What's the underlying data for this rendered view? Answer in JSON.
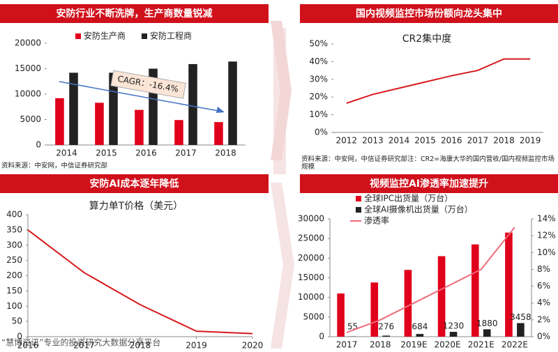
{
  "chart_data": [
    {
      "type": "bar",
      "title": "安防行业不断洗牌，生产商数量锐减",
      "categories": [
        "2014",
        "2015",
        "2016",
        "2017",
        "2018"
      ],
      "series": [
        {
          "name": "安防生产商",
          "color": "#e0001b",
          "values": [
            9200,
            8300,
            6900,
            4900,
            4500
          ]
        },
        {
          "name": "安防工程商",
          "color": "#222222",
          "values": [
            14200,
            14200,
            15000,
            15900,
            16400
          ]
        }
      ],
      "ylim": [
        0,
        20000
      ],
      "yticks": [
        0,
        5000,
        10000,
        15000,
        20000
      ],
      "annotation": "CAGR：-16.4%",
      "note": "资料来源：中安网，中信证券研究部",
      "legend": "top"
    },
    {
      "type": "line",
      "title": "国内视频监控市场份额向龙头集中",
      "subtitle": "CR2集中度",
      "categories": [
        "2012",
        "2013",
        "2014",
        "2015",
        "2016",
        "2017",
        "2018",
        "2019"
      ],
      "series": [
        {
          "name": "CR2",
          "color": "#d7191c",
          "values": [
            16.5,
            21.5,
            25,
            28.5,
            32,
            35,
            41.5,
            41.5
          ]
        }
      ],
      "ylim": [
        0,
        50
      ],
      "yticks": [
        {
          "value": 0,
          "label": "0%"
        },
        {
          "value": 10,
          "label": "10%"
        },
        {
          "value": 20,
          "label": "20%"
        },
        {
          "value": 30,
          "label": "30%"
        },
        {
          "value": 40,
          "label": "40%"
        },
        {
          "value": 50,
          "label": "50%"
        }
      ],
      "note": "资料来源：中安网，中信证券研究部注：CR2=海康大华的国内营收/国内视频监控市场规模"
    },
    {
      "type": "line",
      "title": "安防AI成本逐年降低",
      "subtitle": "算力单T价格（美元）",
      "x": [
        2016,
        2017,
        2018,
        2019,
        2020
      ],
      "series": [
        {
          "name": "算力单T价格",
          "color": "#d7191c",
          "values": [
            350,
            210,
            105,
            18,
            10
          ]
        }
      ],
      "xlim": [
        2016,
        2020
      ],
      "xticks": [
        2016,
        2017,
        2018,
        2019,
        2020
      ],
      "ylim": [
        0,
        400
      ],
      "yticks": [
        0,
        50,
        100,
        150,
        200,
        250,
        300,
        350,
        400
      ]
    },
    {
      "type": "bar",
      "title": "视频监控AI渗透率加速提升",
      "categories": [
        "2017",
        "2018",
        "2019E",
        "2020E",
        "2021E",
        "2022E"
      ],
      "series": [
        {
          "name": "全球IPC出货量（万台）",
          "color": "#e0001b",
          "values": [
            11000,
            13800,
            17000,
            20500,
            23500,
            26500
          ]
        },
        {
          "name": "全球AI摄像机出货量（万台）",
          "color": "#222222",
          "values": [
            55,
            276,
            684,
            1230,
            1880,
            3458
          ],
          "show_labels": true
        },
        {
          "name": "渗透率",
          "color": "#f06a7a",
          "type": "line",
          "axis": "y2",
          "values": [
            0.5,
            2,
            4,
            6,
            8,
            13
          ]
        }
      ],
      "ylim": [
        0,
        30000
      ],
      "yticks": [
        0,
        5000,
        10000,
        15000,
        20000,
        25000,
        30000
      ],
      "y2lim": [
        0,
        14
      ],
      "y2ticks": [
        {
          "value": 0,
          "label": "0%"
        },
        {
          "value": 2,
          "label": "2%"
        },
        {
          "value": 4,
          "label": "4%"
        },
        {
          "value": 6,
          "label": "6%"
        },
        {
          "value": 8,
          "label": "8%"
        },
        {
          "value": 10,
          "label": "10%"
        },
        {
          "value": 12,
          "label": "12%"
        },
        {
          "value": 14,
          "label": "14%"
        }
      ],
      "legend": "top-left"
    }
  ],
  "footer": "“慧博资讯”专业的投资研究大数据分享平台"
}
